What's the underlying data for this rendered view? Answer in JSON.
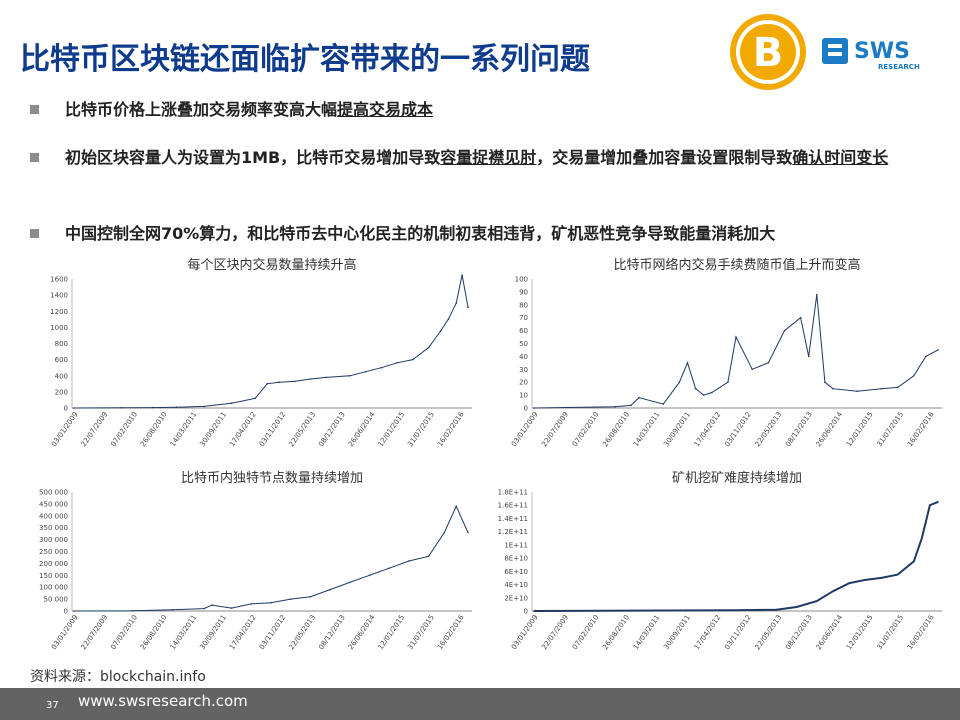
{
  "header": {
    "title": "比特币区块链还面临扩容带来的一系列问题",
    "btc_logo_symbol": "B",
    "sws_logo_text": "SWS",
    "sws_logo_sub": "RESEARCH",
    "accent_color": "#0e3b8c",
    "btc_color": "#f2a900"
  },
  "bullets": [
    {
      "pre": "比特币价格上涨叠加交易频率变高大幅",
      "u": "提高交易成本",
      "post": ""
    },
    {
      "pre": "初始区块容量人为设置为1MB，比特币交易增加导致",
      "u": "容量捉襟见肘",
      "post": "，交易量增加叠加容量设置限制导致",
      "u2": "确认时间变长"
    },
    {
      "pre": "中国控制全网70%算力，和比特币去中心化民主的机制初衷相违背，矿机恶性竞争导致能量消耗加大",
      "u": "",
      "post": ""
    }
  ],
  "footer": {
    "source": "资料来源：blockchain.info",
    "page_number": "37",
    "url": "www.swsresearch.com"
  },
  "chart_data": [
    {
      "type": "line",
      "title": "每个区块内交易数量持续升高",
      "yticks": [
        "0",
        "200",
        "400",
        "600",
        "800",
        "1000",
        "1200",
        "1400",
        "1600"
      ],
      "ylim": [
        0,
        1600
      ],
      "xticks": [
        "03/01/2009",
        "22/07/2009",
        "07/02/2010",
        "26/08/2010",
        "14/03/2011",
        "30/09/2011",
        "17/04/2012",
        "03/11/2012",
        "22/05/2013",
        "08/12/2013",
        "26/06/2014",
        "12/01/2015",
        "31/07/2015",
        "16/02/2016"
      ],
      "series": [
        {
          "x_frac": [
            0,
            0.12,
            0.2,
            0.26,
            0.33,
            0.4,
            0.46,
            0.49,
            0.52,
            0.56,
            0.6,
            0.64,
            0.7,
            0.74,
            0.78,
            0.82,
            0.86,
            0.9,
            0.93,
            0.95,
            0.97,
            0.985,
            1.0
          ],
          "values": [
            0,
            2,
            5,
            10,
            20,
            60,
            120,
            300,
            320,
            330,
            360,
            380,
            400,
            450,
            500,
            560,
            600,
            750,
            950,
            1100,
            1300,
            1650,
            1250
          ]
        }
      ]
    },
    {
      "type": "line",
      "title": "比特币网络内交易手续费随币值上升而变高",
      "yticks": [
        "0",
        "10",
        "20",
        "30",
        "40",
        "50",
        "60",
        "70",
        "80",
        "90",
        "100"
      ],
      "ylim": [
        0,
        100
      ],
      "xticks": [
        "03/01/2009",
        "22/07/2009",
        "07/02/2010",
        "26/08/2010",
        "14/03/2011",
        "30/09/2011",
        "17/04/2012",
        "03/11/2012",
        "22/05/2013",
        "08/12/2013",
        "26/06/2014",
        "12/01/2015",
        "31/07/2015",
        "16/02/2016"
      ],
      "series": [
        {
          "x_frac": [
            0,
            0.2,
            0.24,
            0.26,
            0.32,
            0.36,
            0.38,
            0.4,
            0.42,
            0.44,
            0.48,
            0.5,
            0.54,
            0.58,
            0.62,
            0.66,
            0.68,
            0.7,
            0.72,
            0.74,
            0.8,
            0.86,
            0.9,
            0.94,
            0.97,
            1.0
          ],
          "values": [
            0,
            1,
            2,
            8,
            3,
            20,
            35,
            15,
            10,
            12,
            20,
            55,
            30,
            35,
            60,
            70,
            40,
            88,
            20,
            15,
            13,
            15,
            16,
            25,
            40,
            45
          ]
        }
      ]
    },
    {
      "type": "line",
      "title": "比特币内独特节点数量持续增加",
      "yticks": [
        "0",
        "50 000",
        "100 000",
        "150 000",
        "200 000",
        "250 000",
        "300 000",
        "350 000",
        "400 000",
        "450 000",
        "500 000"
      ],
      "ylim": [
        0,
        500000
      ],
      "xticks": [
        "03/01/2009",
        "22/07/2009",
        "07/02/2010",
        "26/08/2010",
        "14/03/2011",
        "30/09/2011",
        "17/04/2012",
        "03/11/2012",
        "22/05/2013",
        "08/12/2013",
        "26/06/2014",
        "12/01/2015",
        "31/07/2015",
        "16/02/2016"
      ],
      "series": [
        {
          "x_frac": [
            0,
            0.15,
            0.25,
            0.33,
            0.35,
            0.4,
            0.45,
            0.5,
            0.55,
            0.6,
            0.65,
            0.7,
            0.75,
            0.8,
            0.85,
            0.9,
            0.94,
            0.97,
            1.0
          ],
          "values": [
            0,
            1000,
            5000,
            10000,
            25000,
            12000,
            30000,
            35000,
            50000,
            60000,
            90000,
            120000,
            150000,
            180000,
            210000,
            230000,
            330000,
            440000,
            330000
          ]
        }
      ]
    },
    {
      "type": "line",
      "title": "矿机挖矿难度持续增加",
      "yticks": [
        "0",
        "2E+10",
        "4E+10",
        "6E+10",
        "8E+10",
        "1E+11",
        "1.2E+11",
        "1.4E+11",
        "1.6E+11",
        "1.8E+11"
      ],
      "ylim": [
        0,
        180000000000
      ],
      "xticks": [
        "03/01/2009",
        "22/07/2009",
        "07/02/2010",
        "26/08/2010",
        "14/03/2011",
        "30/09/2011",
        "17/04/2012",
        "03/11/2012",
        "22/05/2013",
        "08/12/2013",
        "26/06/2014",
        "12/01/2015",
        "31/07/2015",
        "16/02/2016"
      ],
      "series": [
        {
          "x_frac": [
            0,
            0.5,
            0.6,
            0.65,
            0.7,
            0.74,
            0.78,
            0.82,
            0.86,
            0.9,
            0.94,
            0.96,
            0.98,
            1.0
          ],
          "values": [
            0,
            1000000000,
            2000000000,
            6000000000,
            15000000000,
            30000000000,
            42000000000,
            47000000000,
            50000000000,
            55000000000,
            75000000000,
            110000000000,
            160000000000,
            165000000000
          ]
        }
      ]
    }
  ]
}
